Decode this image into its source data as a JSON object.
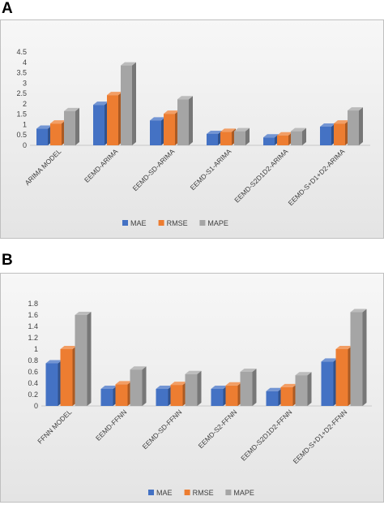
{
  "panels": [
    {
      "letter": "A"
    },
    {
      "letter": "B"
    }
  ],
  "colors": {
    "MAE": "#4472c4",
    "RMSE": "#ed7d31",
    "MAPE": "#a5a5a5"
  },
  "chart_data": [
    {
      "type": "bar",
      "categories": [
        "ARIMA MODEL",
        "EEMD-ARIMA",
        "EEMD-SD-ARIMA",
        "EEMD-S1-ARIMA",
        "EEMD-S2D1D2-ARIMA",
        "EEMD-S+D1+D2-ARIMA"
      ],
      "series": [
        {
          "name": "MAE",
          "values": [
            0.8,
            1.95,
            1.2,
            0.55,
            0.38,
            0.9
          ]
        },
        {
          "name": "RMSE",
          "values": [
            1.05,
            2.42,
            1.52,
            0.65,
            0.48,
            1.05
          ]
        },
        {
          "name": "MAPE",
          "values": [
            1.65,
            3.85,
            2.22,
            0.68,
            0.68,
            1.68
          ]
        }
      ],
      "yticks": [
        "0",
        "0.5",
        "1",
        "1.5",
        "2",
        "2.5",
        "3",
        "3.5",
        "4",
        "4.5"
      ],
      "ylim": [
        0,
        4.5
      ],
      "legend": "bottom",
      "grid": false,
      "style": "3d"
    },
    {
      "type": "bar",
      "categories": [
        "FFNN MODEL",
        "EEMD-FFNN",
        "EEMD-SD-FFNN",
        "EEMD-S2-FFNN",
        "EEMD-S2D1D2-FFNN",
        "EEMD-S+D1+D2-FFNN"
      ],
      "series": [
        {
          "name": "MAE",
          "values": [
            0.75,
            0.3,
            0.3,
            0.3,
            0.26,
            0.78
          ]
        },
        {
          "name": "RMSE",
          "values": [
            1.0,
            0.38,
            0.37,
            0.36,
            0.33,
            1.0
          ]
        },
        {
          "name": "MAPE",
          "values": [
            1.6,
            0.64,
            0.56,
            0.6,
            0.54,
            1.65
          ]
        }
      ],
      "yticks": [
        "0",
        "0.2",
        "0.4",
        "0.6",
        "0.8",
        "1",
        "1.2",
        "1.4",
        "1.6",
        "1.8"
      ],
      "ylim": [
        0,
        1.8
      ],
      "legend": "bottom",
      "grid": false,
      "style": "3d"
    }
  ]
}
